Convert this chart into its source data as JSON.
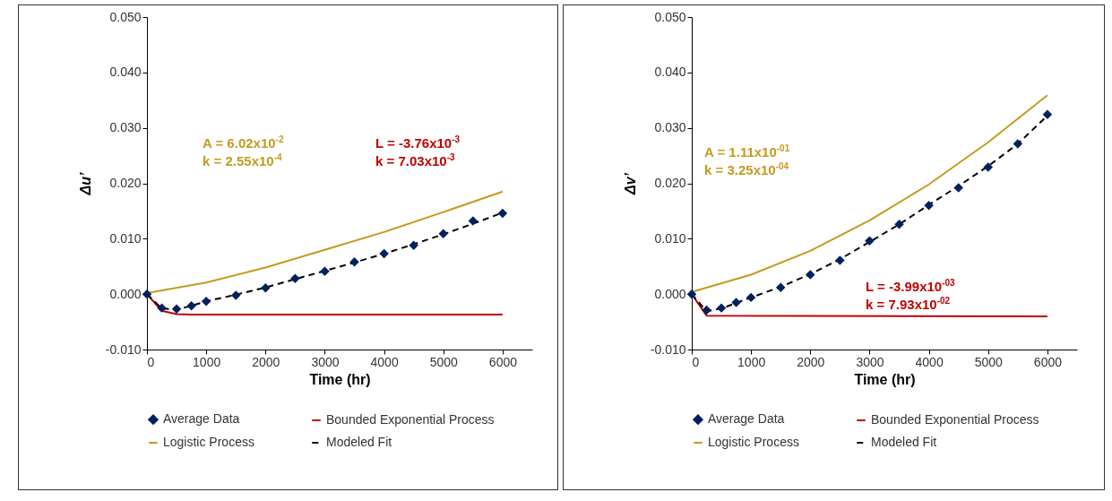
{
  "chart_data": [
    {
      "type": "line",
      "xlabel": "Time (hr)",
      "ylabel": "Δu’",
      "xlim": [
        0,
        6500
      ],
      "xticks": [
        0,
        1000,
        2000,
        3000,
        4000,
        5000,
        6000
      ],
      "ylim": [
        -0.01,
        0.05
      ],
      "yticks": [
        {
          "value": -0.01,
          "label": "-0.010"
        },
        {
          "value": 0,
          "label": "0.000"
        },
        {
          "value": 0.01,
          "label": "0.010"
        },
        {
          "value": 0.02,
          "label": "0.020"
        },
        {
          "value": 0.03,
          "label": "0.030"
        },
        {
          "value": 0.04,
          "label": "0.040"
        },
        {
          "value": 0.05,
          "label": "0.050"
        }
      ],
      "grid": false,
      "legend": "bottom",
      "annotations": [
        "A = 6.02x10$^{-2}$",
        "k = 2.55x10$^{-4}$",
        "L = -3.76x10$^{-3}$",
        "k = 7.03x10$^{-3}$"
      ],
      "series": [
        {
          "name": "Average Data",
          "type": "scatter",
          "marker": "diamond",
          "color": "#002060",
          "x": [
            0,
            250,
            500,
            750,
            1000,
            1500,
            2000,
            2500,
            3000,
            3500,
            4000,
            4500,
            5000,
            5500,
            6000
          ],
          "values": [
            0,
            -0.0025,
            -0.0027,
            -0.0021,
            -0.0013,
            -0.0002,
            0.0011,
            0.0028,
            0.0041,
            0.0058,
            0.0073,
            0.0088,
            0.0109,
            0.0132,
            0.0146
          ]
        },
        {
          "name": "Bounded Exponential Process",
          "type": "line",
          "line_style": "solid",
          "color": "#c00000",
          "x": [
            0,
            250,
            500,
            750,
            1000,
            6000
          ],
          "values": [
            0,
            -0.003,
            -0.0036,
            -0.0037,
            -0.0037,
            -0.0037
          ]
        },
        {
          "name": "Logistic Process",
          "type": "line",
          "line_style": "solid",
          "color": "#c49a1f",
          "x": [
            0,
            1000,
            2000,
            3000,
            4000,
            5000,
            6000
          ],
          "values": [
            0.0002,
            0.0021,
            0.0048,
            0.008,
            0.0112,
            0.0148,
            0.0185
          ]
        },
        {
          "name": "Modeled Fit",
          "type": "line",
          "line_style": "dashed",
          "color": "#000000",
          "x": [
            0,
            250,
            500,
            750,
            1000,
            1500,
            2000,
            2500,
            3000,
            3500,
            4000,
            4500,
            5000,
            5500,
            6000
          ],
          "values": [
            0,
            -0.0026,
            -0.0028,
            -0.0021,
            -0.0013,
            -0.0001,
            0.0012,
            0.0027,
            0.0042,
            0.0057,
            0.0073,
            0.009,
            0.0108,
            0.0127,
            0.0147
          ]
        }
      ]
    },
    {
      "type": "line",
      "xlabel": "Time (hr)",
      "ylabel": "Δv’",
      "xlim": [
        0,
        6500
      ],
      "xticks": [
        0,
        1000,
        2000,
        3000,
        4000,
        5000,
        6000
      ],
      "ylim": [
        -0.01,
        0.05
      ],
      "yticks": [
        {
          "value": -0.01,
          "label": "-0.010"
        },
        {
          "value": 0,
          "label": "0.000"
        },
        {
          "value": 0.01,
          "label": "0.010"
        },
        {
          "value": 0.02,
          "label": "0.020"
        },
        {
          "value": 0.03,
          "label": "0.030"
        },
        {
          "value": 0.04,
          "label": "0.040"
        },
        {
          "value": 0.05,
          "label": "0.050"
        }
      ],
      "grid": false,
      "legend": "bottom",
      "annotations": [
        "A = 1.11x10$^{-01}$",
        "k = 3.25x10$^{-04}$",
        "L = -3.99x10$^{-03}$",
        "k = 7.93x10$^{-02}$"
      ],
      "series": [
        {
          "name": "Average Data",
          "type": "scatter",
          "marker": "diamond",
          "color": "#002060",
          "x": [
            0,
            250,
            500,
            750,
            1000,
            1500,
            2000,
            2500,
            3000,
            3500,
            4000,
            4500,
            5000,
            5500,
            6000
          ],
          "values": [
            0,
            -0.0029,
            -0.0025,
            -0.0015,
            -0.0006,
            0.0012,
            0.0035,
            0.0061,
            0.0096,
            0.0126,
            0.016,
            0.0192,
            0.0229,
            0.0271,
            0.0324
          ]
        },
        {
          "name": "Bounded Exponential Process",
          "type": "line",
          "line_style": "solid",
          "color": "#c00000",
          "x": [
            0,
            250,
            6000
          ],
          "values": [
            0,
            -0.0039,
            -0.004
          ]
        },
        {
          "name": "Logistic Process",
          "type": "line",
          "line_style": "solid",
          "color": "#c49a1f",
          "x": [
            0,
            1000,
            2000,
            3000,
            4000,
            5000,
            6000
          ],
          "values": [
            0.0004,
            0.0035,
            0.0078,
            0.0133,
            0.0198,
            0.0274,
            0.0359
          ]
        },
        {
          "name": "Modeled Fit",
          "type": "line",
          "line_style": "dashed",
          "color": "#000000",
          "x": [
            0,
            250,
            500,
            750,
            1000,
            1500,
            2000,
            2500,
            3000,
            3500,
            4000,
            4500,
            5000,
            5500,
            6000
          ],
          "values": [
            0,
            -0.0031,
            -0.0026,
            -0.0016,
            -0.0006,
            0.0013,
            0.0036,
            0.0063,
            0.0094,
            0.0126,
            0.0161,
            0.0195,
            0.0231,
            0.0271,
            0.0322
          ]
        }
      ]
    }
  ]
}
